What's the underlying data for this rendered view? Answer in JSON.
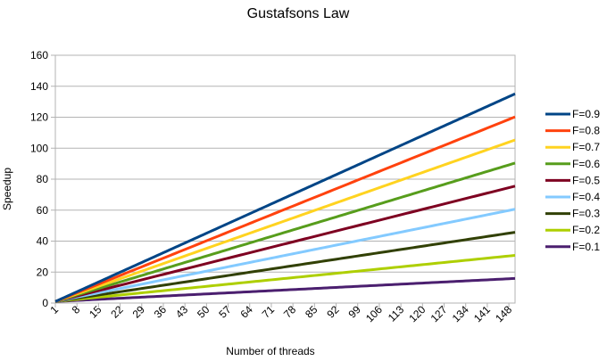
{
  "chart_data": {
    "type": "line",
    "title": "Gustafsons Law",
    "xlabel": "Number of threads",
    "ylabel": "Speedup",
    "x_range": [
      1,
      150
    ],
    "x_ticks": [
      "1",
      "8",
      "15",
      "22",
      "29",
      "36",
      "43",
      "50",
      "57",
      "64",
      "71",
      "78",
      "85",
      "92",
      "99",
      "106",
      "113",
      "120",
      "127",
      "134",
      "141",
      "148"
    ],
    "ylim": [
      0,
      160
    ],
    "y_ticks": [
      "0",
      "20",
      "40",
      "60",
      "80",
      "100",
      "120",
      "140",
      "160"
    ],
    "grid": "horizontal",
    "legend_position": "right",
    "series": [
      {
        "name": "F=0.9",
        "f": 0.9,
        "color": "#004586"
      },
      {
        "name": "F=0.8",
        "f": 0.8,
        "color": "#ff420e"
      },
      {
        "name": "F=0.7",
        "f": 0.7,
        "color": "#ffd320"
      },
      {
        "name": "F=0.6",
        "f": 0.6,
        "color": "#579d1c"
      },
      {
        "name": "F=0.5",
        "f": 0.5,
        "color": "#7e0021"
      },
      {
        "name": "F=0.4",
        "f": 0.4,
        "color": "#83caff"
      },
      {
        "name": "F=0.3",
        "f": 0.3,
        "color": "#314004"
      },
      {
        "name": "F=0.2",
        "f": 0.2,
        "color": "#aecf00"
      },
      {
        "name": "F=0.1",
        "f": 0.1,
        "color": "#4b1f6f"
      }
    ]
  }
}
